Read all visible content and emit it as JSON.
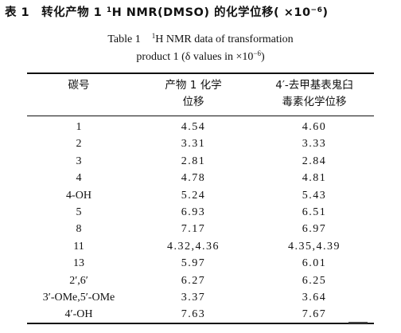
{
  "title_cn": {
    "prefix": "表 1　转化产物 1 ",
    "sup1": "1",
    "middle": "H NMR(DMSO) 的化学位移( ×10",
    "sup2": "−6",
    "suffix": ")"
  },
  "title_en": {
    "line1_pre": "Table 1　",
    "line1_sup": "1",
    "line1_post": "H NMR data of transformation",
    "line2_pre": "product 1 (δ values in ×10",
    "line2_sup": "−6",
    "line2_post": ")"
  },
  "headers": {
    "col1": "碳号",
    "col2_line1": "产物 1 化学",
    "col2_line2": "位移",
    "col3_line1": "4′-去甲基表鬼臼",
    "col3_line2": "毒素化学位移"
  },
  "rows": [
    {
      "carbon": "1",
      "product": "4.54",
      "reference": "4.60"
    },
    {
      "carbon": "2",
      "product": "3.31",
      "reference": "3.33"
    },
    {
      "carbon": "3",
      "product": "2.81",
      "reference": "2.84"
    },
    {
      "carbon": "4",
      "product": "4.78",
      "reference": "4.81"
    },
    {
      "carbon": "4-OH",
      "product": "5.24",
      "reference": "5.43"
    },
    {
      "carbon": "5",
      "product": "6.93",
      "reference": "6.51"
    },
    {
      "carbon": "8",
      "product": "7.17",
      "reference": "6.97"
    },
    {
      "carbon": "11",
      "product": "4.32,4.36",
      "reference": "4.35,4.39"
    },
    {
      "carbon": "13",
      "product": "5.97",
      "reference": "6.01"
    },
    {
      "carbon": "2′,6′",
      "product": "6.27",
      "reference": "6.25"
    },
    {
      "carbon": "3′-OMe,5′-OMe",
      "product": "3.37",
      "reference": "3.64"
    },
    {
      "carbon": "4′-OH",
      "product": "7.63",
      "reference": "7.67"
    }
  ]
}
